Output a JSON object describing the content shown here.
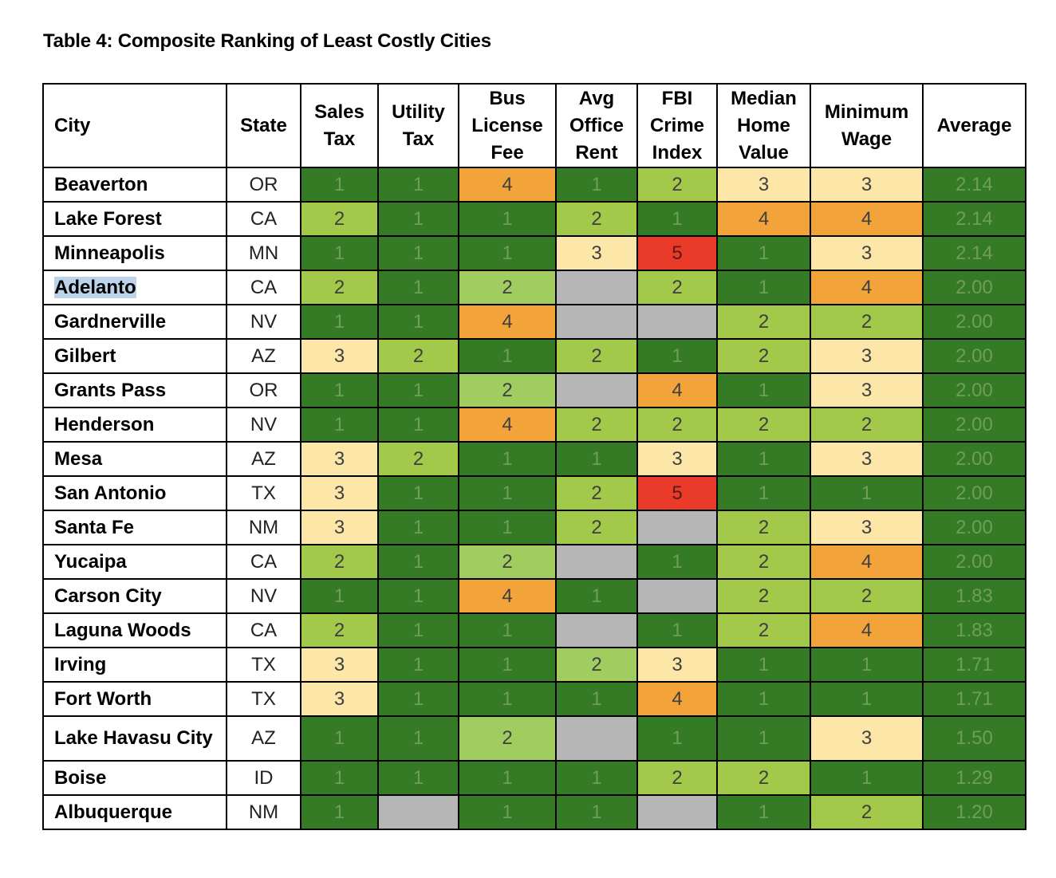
{
  "title": "Table 4:  Composite Ranking of Least Costly Cities",
  "colors": {
    "1": "#357a24",
    "2": "#a3c94a",
    "2b": "#a1cc5f",
    "3": "#fce7a9",
    "4": "#f2a33a",
    "5": "#ea3b2a",
    "na": "#b6b6b6",
    "avg": "#357a24"
  },
  "highlighted_city": "Adelanto",
  "headers": [
    "City",
    "State",
    "Sales Tax",
    "Utility Tax",
    "Bus License Fee",
    "Avg Office Rent",
    "FBI Crime Index",
    "Median Home Value",
    "Minimum Wage",
    "Average"
  ],
  "rows": [
    {
      "city": "Beaverton",
      "state": "OR",
      "cells": [
        "1",
        "1",
        "4",
        "1",
        "2",
        "3",
        "3"
      ],
      "average": "2.14"
    },
    {
      "city": "Lake Forest",
      "state": "CA",
      "cells": [
        "2",
        "1",
        "1",
        "2",
        "1",
        "4",
        "4"
      ],
      "average": "2.14"
    },
    {
      "city": "Minneapolis",
      "state": "MN",
      "cells": [
        "1",
        "1",
        "1",
        "3",
        "5",
        "1",
        "3"
      ],
      "average": "2.14"
    },
    {
      "city": "Adelanto",
      "state": "CA",
      "cells": [
        "2",
        "1",
        "2b",
        "",
        "2",
        "1",
        "4"
      ],
      "average": "2.00"
    },
    {
      "city": "Gardnerville",
      "state": "NV",
      "cells": [
        "1",
        "1",
        "4",
        "",
        "",
        "2",
        "2"
      ],
      "average": "2.00"
    },
    {
      "city": "Gilbert",
      "state": "AZ",
      "cells": [
        "3",
        "2",
        "1",
        "2",
        "1",
        "2",
        "3"
      ],
      "average": "2.00"
    },
    {
      "city": "Grants Pass",
      "state": "OR",
      "cells": [
        "1",
        "1",
        "2b",
        "",
        "4",
        "1",
        "3"
      ],
      "average": "2.00"
    },
    {
      "city": "Henderson",
      "state": "NV",
      "cells": [
        "1",
        "1",
        "4",
        "2",
        "2",
        "2",
        "2"
      ],
      "average": "2.00"
    },
    {
      "city": "Mesa",
      "state": "AZ",
      "cells": [
        "3",
        "2",
        "1",
        "1",
        "3",
        "1",
        "3"
      ],
      "average": "2.00"
    },
    {
      "city": "San Antonio",
      "state": "TX",
      "cells": [
        "3",
        "1",
        "1",
        "2",
        "5",
        "1",
        "1"
      ],
      "average": "2.00"
    },
    {
      "city": "Santa Fe",
      "state": "NM",
      "cells": [
        "3",
        "1",
        "1",
        "2",
        "",
        "2",
        "3"
      ],
      "average": "2.00"
    },
    {
      "city": "Yucaipa",
      "state": "CA",
      "cells": [
        "2",
        "1",
        "2b",
        "",
        "1",
        "2",
        "4"
      ],
      "average": "2.00"
    },
    {
      "city": "Carson City",
      "state": "NV",
      "cells": [
        "1",
        "1",
        "4",
        "1",
        "",
        "2",
        "2"
      ],
      "average": "1.83"
    },
    {
      "city": "Laguna Woods",
      "state": "CA",
      "cells": [
        "2",
        "1",
        "1",
        "",
        "1",
        "2",
        "4"
      ],
      "average": "1.83"
    },
    {
      "city": "Irving",
      "state": "TX",
      "cells": [
        "3",
        "1",
        "1",
        "2b",
        "3",
        "1",
        "1"
      ],
      "average": "1.71"
    },
    {
      "city": "Fort Worth",
      "state": "TX",
      "cells": [
        "3",
        "1",
        "1",
        "1",
        "4",
        "1",
        "1"
      ],
      "average": "1.71"
    },
    {
      "city": "Lake Havasu City",
      "state": "AZ",
      "cells": [
        "1",
        "1",
        "2b",
        "",
        "1",
        "1",
        "3"
      ],
      "average": "1.50"
    },
    {
      "city": "Boise",
      "state": "ID",
      "cells": [
        "1",
        "1",
        "1",
        "1",
        "2",
        "2",
        "1"
      ],
      "average": "1.29"
    },
    {
      "city": "Albuquerque",
      "state": "NM",
      "cells": [
        "1",
        "",
        "1",
        "1",
        "",
        "1",
        "2"
      ],
      "average": "1.20"
    }
  ]
}
